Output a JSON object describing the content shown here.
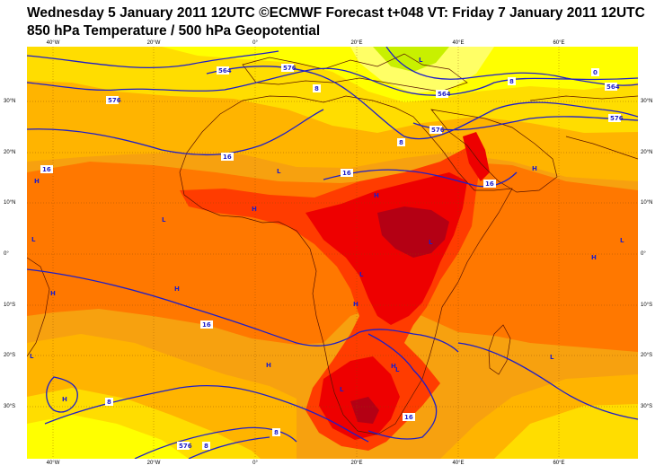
{
  "header": {
    "title_line1": "Wednesday 5 January 2011 12UTC ©ECMWF Forecast t+048 VT: Friday 7 January 2011 12UTC",
    "title_line2": "850 hPa Temperature / 500 hPa Geopotential"
  },
  "axes": {
    "lon_labels": [
      "40°W",
      "20°W",
      "0°",
      "20°E",
      "40°E",
      "60°E"
    ],
    "lat_labels": [
      "30°N",
      "20°N",
      "10°N",
      "0°",
      "10°S",
      "20°S",
      "30°S"
    ]
  },
  "contour_labels": {
    "geopotential": [
      "564",
      "576",
      "576",
      "564",
      "576",
      "576",
      "564",
      "576"
    ],
    "temperature": [
      "8",
      "8",
      "8",
      "0",
      "16",
      "16",
      "16",
      "16",
      "16",
      "8",
      "8",
      "8",
      "16"
    ]
  },
  "pressure_centers": {
    "H": "H",
    "L": "L"
  },
  "colors": {
    "cold_yellow": "#ffff66",
    "light_yellow": "#ffff00",
    "yellow": "#ffdd00",
    "light_orange": "#ffb400",
    "orange": "#f7a10f",
    "dark_orange": "#ff7800",
    "red_orange": "#ff3c00",
    "red": "#ee0000",
    "dark_red": "#b40014",
    "green": "#c8f000",
    "contour_blue": "#1e1ec8",
    "coast": "#5a1400"
  }
}
